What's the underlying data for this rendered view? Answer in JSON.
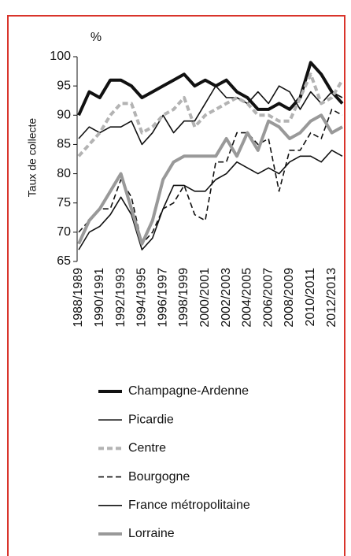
{
  "chart_data": {
    "type": "line",
    "y_unit": "%",
    "y_label": "Taux de collecte",
    "categories": [
      "1988/1989",
      null,
      "1990/1991",
      null,
      "1992/1993",
      null,
      "1994/1995",
      null,
      "1996/1997",
      null,
      "1998/1999",
      null,
      "2000/2001",
      null,
      "2002/2003",
      null,
      "2004/2005",
      null,
      "2006/2007",
      null,
      "2008/2009",
      null,
      "2010/2011",
      null,
      "2012/2013",
      null
    ],
    "ylim": [
      65,
      100
    ],
    "yticks": [
      65,
      70,
      75,
      80,
      85,
      90,
      95,
      100
    ],
    "series": [
      {
        "name": "Champagne-Ardenne",
        "color": "#111111",
        "style": "solid",
        "weight": "bold",
        "values": [
          90,
          94,
          93,
          96,
          96,
          95,
          93,
          94,
          95,
          96,
          97,
          95,
          96,
          95,
          96,
          94,
          93,
          91,
          91,
          92,
          91,
          93,
          99,
          97,
          94,
          92
        ]
      },
      {
        "name": "Picardie",
        "color": "#111111",
        "style": "solid",
        "weight": "normal",
        "values": [
          86,
          88,
          87,
          88,
          88,
          89,
          85,
          87,
          90,
          87,
          89,
          89,
          92,
          95,
          93,
          93,
          92,
          94,
          92,
          95,
          94,
          91,
          94,
          92,
          94,
          93
        ]
      },
      {
        "name": "Centre",
        "color": "#b3b3b3",
        "style": "dashed",
        "weight": "bold",
        "values": [
          83,
          85,
          87,
          90,
          92,
          92,
          87,
          88,
          90,
          91,
          93,
          88,
          90,
          91,
          92,
          93,
          92,
          90,
          90,
          89,
          89,
          93,
          97,
          92,
          93,
          96
        ]
      },
      {
        "name": "Bourgogne",
        "color": "#111111",
        "style": "dashed",
        "weight": "normal",
        "values": [
          70,
          72,
          74,
          74,
          79,
          76,
          68,
          70,
          74,
          75,
          78,
          73,
          72,
          82,
          82,
          87,
          87,
          85,
          86,
          77,
          84,
          84,
          87,
          86,
          91,
          90
        ]
      },
      {
        "name": "France métropolitaine",
        "color": "#111111",
        "style": "solid",
        "weight": "normal",
        "values": [
          67,
          70,
          71,
          73,
          76,
          73,
          67,
          69,
          74,
          78,
          78,
          77,
          77,
          79,
          80,
          82,
          81,
          80,
          81,
          80,
          82,
          83,
          83,
          82,
          84,
          83
        ]
      },
      {
        "name": "Lorraine",
        "color": "#999999",
        "style": "solid",
        "weight": "bold",
        "values": [
          68,
          72,
          74,
          77,
          80,
          74,
          68,
          72,
          79,
          82,
          83,
          83,
          83,
          83,
          86,
          83,
          87,
          84,
          89,
          88,
          86,
          87,
          89,
          90,
          87,
          88
        ]
      }
    ]
  }
}
